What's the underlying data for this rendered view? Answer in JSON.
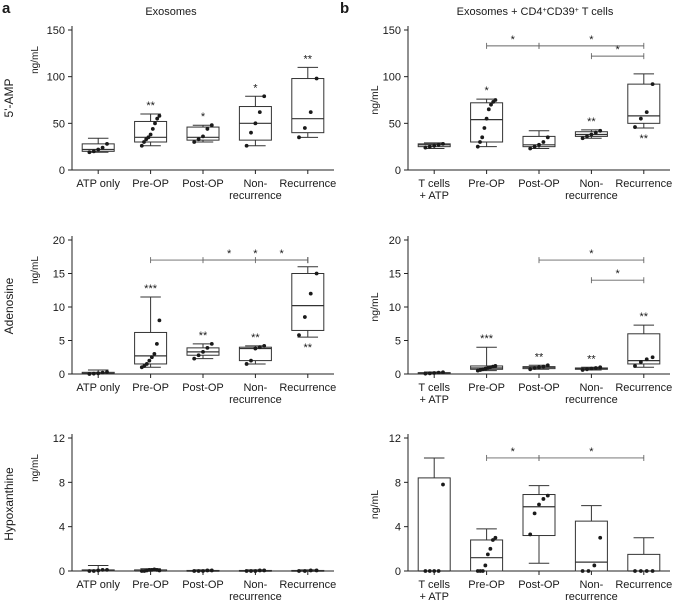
{
  "panel_letters": [
    "a",
    "b"
  ],
  "column_titles": [
    "Exosomes",
    "Exosomes + CD4+CD39+ T cells"
  ],
  "column_titles_rich": [
    {
      "parts": [
        {
          "t": "Exosomes"
        }
      ]
    },
    {
      "parts": [
        {
          "t": "Exosomes + CD4"
        },
        {
          "t": "+",
          "sup": true
        },
        {
          "t": "CD39"
        },
        {
          "t": "+",
          "sup": true
        },
        {
          "t": " T cells"
        }
      ]
    }
  ],
  "row_titles": [
    "5'-AMP",
    "Adenosine",
    "Hypoxanthine"
  ],
  "unit_label": "ng/mL",
  "chart_data": [
    {
      "id": "a1",
      "col": 0,
      "row": 0,
      "type": "box",
      "title": "Exosomes",
      "row_title": "5'-AMP",
      "ylabel": "ng/mL",
      "ylim": [
        0,
        150
      ],
      "yticks": [
        "0",
        "50",
        "100",
        "150"
      ],
      "categories": [
        [
          "ATP only"
        ],
        [
          "Pre-OP"
        ],
        [
          "Post-OP"
        ],
        [
          "Non-",
          "recurrence"
        ],
        [
          "Recurrence"
        ]
      ],
      "boxes": [
        {
          "min": 19,
          "q1": 20,
          "median": 22,
          "q3": 28,
          "max": 34,
          "points": [
            19,
            20,
            22,
            24,
            28
          ],
          "star": "",
          "star_pos": "above"
        },
        {
          "min": 26,
          "q1": 30,
          "median": 35,
          "q3": 52,
          "max": 60,
          "points": [
            26,
            30,
            33,
            35,
            38,
            44,
            50,
            55,
            58
          ],
          "star": "**",
          "star_pos": "above"
        },
        {
          "min": 30,
          "q1": 32,
          "median": 35,
          "q3": 46,
          "max": 48,
          "points": [
            30,
            33,
            36,
            44,
            48
          ],
          "star": "*",
          "star_pos": "above"
        },
        {
          "min": 26,
          "q1": 32,
          "median": 50,
          "q3": 68,
          "max": 79,
          "points": [
            26,
            40,
            50,
            62,
            79
          ],
          "star": "*",
          "star_pos": "above"
        },
        {
          "min": 35,
          "q1": 40,
          "median": 55,
          "q3": 98,
          "max": 110,
          "points": [
            35,
            45,
            62,
            98
          ],
          "star": "**",
          "star_pos": "above"
        }
      ],
      "brackets": []
    },
    {
      "id": "b1",
      "col": 1,
      "row": 0,
      "type": "box",
      "title": "Exosomes + CD4+CD39+ T cells",
      "row_title": "",
      "ylabel": "ng/mL",
      "ylim": [
        0,
        150
      ],
      "yticks": [
        "0",
        "50",
        "100",
        "150"
      ],
      "categories": [
        [
          "T cells",
          "+ ATP"
        ],
        [
          "Pre-OP"
        ],
        [
          "Post-OP"
        ],
        [
          "Non-",
          "recurrence"
        ],
        [
          "Recurrence"
        ]
      ],
      "boxes": [
        {
          "min": 23,
          "q1": 25,
          "median": 27,
          "q3": 28,
          "max": 29,
          "points": [
            24,
            25,
            26,
            27,
            28
          ],
          "star": "",
          "star_pos": "above"
        },
        {
          "min": 25,
          "q1": 30,
          "median": 54,
          "q3": 72,
          "max": 76,
          "points": [
            25,
            30,
            35,
            45,
            55,
            65,
            70,
            73,
            75
          ],
          "star": "*",
          "star_pos": "above"
        },
        {
          "min": 23,
          "q1": 25,
          "median": 27,
          "q3": 36,
          "max": 42,
          "points": [
            23,
            25,
            27,
            30,
            35
          ],
          "star": "",
          "star_pos": "above"
        },
        {
          "min": 34,
          "q1": 36,
          "median": 38,
          "q3": 41,
          "max": 43,
          "points": [
            34,
            36,
            38,
            40,
            42
          ],
          "star": "**",
          "star_pos": "above"
        },
        {
          "min": 45,
          "q1": 50,
          "median": 58,
          "q3": 92,
          "max": 103,
          "points": [
            46,
            55,
            62,
            92
          ],
          "star": "**",
          "star_pos": "below"
        }
      ],
      "brackets": [
        {
          "from": 1,
          "to": 2,
          "y": 133,
          "label": "*"
        },
        {
          "from": 2,
          "to": 4,
          "y": 133,
          "label": "*"
        },
        {
          "from": 3,
          "to": 4,
          "y": 122,
          "label": "*"
        }
      ]
    },
    {
      "id": "a2",
      "col": 0,
      "row": 1,
      "type": "box",
      "title": "",
      "row_title": "Adenosine",
      "ylabel": "ng/mL",
      "ylim": [
        0,
        20
      ],
      "yticks": [
        "0",
        "5",
        "10",
        "15",
        "20"
      ],
      "categories": [
        [
          "ATP only"
        ],
        [
          "Pre-OP"
        ],
        [
          "Post-OP"
        ],
        [
          "Non-",
          "recurrence"
        ],
        [
          "Recurrence"
        ]
      ],
      "boxes": [
        {
          "min": 0,
          "q1": 0.05,
          "median": 0.1,
          "q3": 0.25,
          "max": 0.6,
          "points": [
            0,
            0.05,
            0.1,
            0.2,
            0.3
          ],
          "star": "",
          "star_pos": "above"
        },
        {
          "min": 1.0,
          "q1": 1.5,
          "median": 2.7,
          "q3": 6.2,
          "max": 11.5,
          "points": [
            1.0,
            1.2,
            1.5,
            2.0,
            2.5,
            3.0,
            4.5,
            8.0
          ],
          "star": "***",
          "star_pos": "above"
        },
        {
          "min": 2.3,
          "q1": 2.8,
          "median": 3.3,
          "q3": 3.9,
          "max": 4.5,
          "points": [
            2.3,
            2.8,
            3.3,
            3.9,
            4.5
          ],
          "star": "**",
          "star_pos": "above"
        },
        {
          "min": 1.5,
          "q1": 2.0,
          "median": 3.8,
          "q3": 4.0,
          "max": 4.2,
          "points": [
            1.5,
            2.0,
            3.8,
            4.0,
            4.2
          ],
          "star": "**",
          "star_pos": "above"
        },
        {
          "min": 5.5,
          "q1": 6.5,
          "median": 10.2,
          "q3": 15.0,
          "max": 16.0,
          "points": [
            5.8,
            8.5,
            12.0,
            15.0
          ],
          "star": "**",
          "star_pos": "below"
        }
      ],
      "brackets": [
        {
          "from": 1,
          "to": 4,
          "y": 17.0,
          "label": "*"
        },
        {
          "from": 2,
          "to": 4,
          "y": 17.0,
          "label": "*"
        },
        {
          "from": 3,
          "to": 4,
          "y": 17.0,
          "label": "*"
        }
      ]
    },
    {
      "id": "b2",
      "col": 1,
      "row": 1,
      "type": "box",
      "title": "",
      "row_title": "",
      "ylabel": "ng/mL",
      "ylim": [
        0,
        20
      ],
      "yticks": [
        "0",
        "5",
        "10",
        "15",
        "20"
      ],
      "categories": [
        [
          "T cells",
          "+ ATP"
        ],
        [
          "Pre-OP"
        ],
        [
          "Post-OP"
        ],
        [
          "Non-",
          "recurrence"
        ],
        [
          "Recurrence"
        ]
      ],
      "boxes": [
        {
          "min": 0.05,
          "q1": 0.1,
          "median": 0.15,
          "q3": 0.2,
          "max": 0.3,
          "points": [
            0.05,
            0.1,
            0.15,
            0.2,
            0.25
          ],
          "star": "",
          "star_pos": "above"
        },
        {
          "min": 0.5,
          "q1": 0.7,
          "median": 0.9,
          "q3": 1.2,
          "max": 4.0,
          "points": [
            0.5,
            0.6,
            0.7,
            0.8,
            0.9,
            1.0,
            1.1,
            1.2
          ],
          "star": "***",
          "star_pos": "above"
        },
        {
          "min": 0.7,
          "q1": 0.8,
          "median": 1.0,
          "q3": 1.1,
          "max": 1.3,
          "points": [
            0.7,
            0.9,
            1.0,
            1.1,
            1.3
          ],
          "star": "**",
          "star_pos": "above"
        },
        {
          "min": 0.6,
          "q1": 0.7,
          "median": 0.8,
          "q3": 0.9,
          "max": 1.0,
          "points": [
            0.6,
            0.7,
            0.8,
            0.9,
            1.0
          ],
          "star": "**",
          "star_pos": "above"
        },
        {
          "min": 1.0,
          "q1": 1.5,
          "median": 2.0,
          "q3": 6.0,
          "max": 7.3,
          "points": [
            1.2,
            1.8,
            2.2,
            2.5
          ],
          "star": "**",
          "star_pos": "above"
        }
      ],
      "brackets": [
        {
          "from": 2,
          "to": 4,
          "y": 17.0,
          "label": "*"
        },
        {
          "from": 3,
          "to": 4,
          "y": 14.0,
          "label": "*"
        }
      ]
    },
    {
      "id": "a3",
      "col": 0,
      "row": 2,
      "type": "box",
      "title": "",
      "row_title": "Hypoxanthine",
      "ylabel": "ng/mL",
      "ylim": [
        0,
        12
      ],
      "yticks": [
        "0",
        "4",
        "8",
        "12"
      ],
      "categories": [
        [
          "ATP only"
        ],
        [
          "Pre-OP"
        ],
        [
          "Post-OP"
        ],
        [
          "Non-",
          "recurrence"
        ],
        [
          "Recurrence"
        ]
      ],
      "boxes": [
        {
          "min": 0,
          "q1": 0,
          "median": 0.05,
          "q3": 0.1,
          "max": 0.5,
          "points": [
            0,
            0,
            0.05,
            0.1,
            0.1
          ],
          "star": "",
          "star_pos": "above"
        },
        {
          "min": 0,
          "q1": 0,
          "median": 0,
          "q3": 0.1,
          "max": 0.2,
          "points": [
            0,
            0,
            0.05,
            0.1,
            0.1,
            0.15,
            0.1,
            0.05
          ],
          "star": "",
          "star_pos": "above"
        },
        {
          "min": 0,
          "q1": 0,
          "median": 0,
          "q3": 0.05,
          "max": 0.1,
          "points": [
            0,
            0,
            0,
            0.05,
            0.05
          ],
          "star": "",
          "star_pos": "above"
        },
        {
          "min": 0,
          "q1": 0,
          "median": 0,
          "q3": 0.05,
          "max": 0.1,
          "points": [
            0,
            0,
            0,
            0.05,
            0.05
          ],
          "star": "",
          "star_pos": "above"
        },
        {
          "min": 0,
          "q1": 0,
          "median": 0,
          "q3": 0.05,
          "max": 0.1,
          "points": [
            0,
            0,
            0.05,
            0.05
          ],
          "star": "",
          "star_pos": "above"
        }
      ],
      "brackets": []
    },
    {
      "id": "b3",
      "col": 1,
      "row": 2,
      "type": "box",
      "title": "",
      "row_title": "",
      "ylabel": "ng/mL",
      "ylim": [
        0,
        12
      ],
      "yticks": [
        "0",
        "4",
        "8",
        "12"
      ],
      "categories": [
        [
          "T cells",
          "+ ATP"
        ],
        [
          "Pre-OP"
        ],
        [
          "Post-OP"
        ],
        [
          "Non-",
          "recurrence"
        ],
        [
          "Recurrence"
        ]
      ],
      "boxes": [
        {
          "min": 0,
          "q1": 0,
          "median": 0,
          "q3": 8.4,
          "max": 10.2,
          "points": [
            0,
            0,
            0,
            0,
            7.8
          ],
          "star": "",
          "star_pos": "above"
        },
        {
          "min": 0,
          "q1": 0,
          "median": 1.2,
          "q3": 2.8,
          "max": 3.8,
          "points": [
            0,
            0,
            0,
            0.5,
            1.5,
            2.0,
            2.8,
            3.0
          ],
          "star": "",
          "star_pos": "above"
        },
        {
          "min": 0.7,
          "q1": 3.2,
          "median": 5.8,
          "q3": 6.9,
          "max": 7.7,
          "points": [
            3.3,
            5.2,
            6.0,
            6.5,
            6.8
          ],
          "star": "",
          "star_pos": "above"
        },
        {
          "min": 0,
          "q1": 0,
          "median": 0.8,
          "q3": 4.5,
          "max": 5.9,
          "points": [
            0,
            0,
            0.5,
            3.0
          ],
          "star": "",
          "star_pos": "above"
        },
        {
          "min": 0,
          "q1": 0,
          "median": 0,
          "q3": 1.5,
          "max": 3.0,
          "points": [
            0,
            0,
            0,
            0
          ],
          "star": "",
          "star_pos": "above"
        }
      ],
      "brackets": [
        {
          "from": 1,
          "to": 2,
          "y": 10.2,
          "label": "*"
        },
        {
          "from": 2,
          "to": 4,
          "y": 10.2,
          "label": "*"
        }
      ]
    }
  ]
}
